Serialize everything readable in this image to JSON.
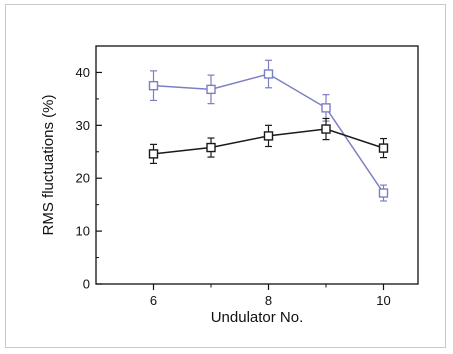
{
  "chart_data": {
    "type": "line",
    "xlabel": "Undulator No.",
    "ylabel": "RMS fluctuations (%)",
    "xlim": [
      5,
      10.6
    ],
    "ylim": [
      0,
      45
    ],
    "x_ticks": [
      6,
      8,
      10
    ],
    "y_ticks": [
      0,
      10,
      20,
      30,
      40
    ],
    "x": [
      6,
      7,
      8,
      9,
      10
    ],
    "grid": false,
    "legend": "none",
    "series": [
      {
        "color": "#7b7fc4",
        "marker": "open-square",
        "values": [
          37.5,
          36.8,
          39.7,
          33.3,
          17.2
        ],
        "errors": [
          2.8,
          2.7,
          2.6,
          2.5,
          1.5
        ]
      },
      {
        "color": "#1a1a1a",
        "marker": "open-square",
        "values": [
          24.6,
          25.8,
          28.0,
          29.3,
          25.7
        ],
        "errors": [
          1.8,
          1.8,
          2.0,
          2.0,
          1.8
        ]
      }
    ]
  }
}
